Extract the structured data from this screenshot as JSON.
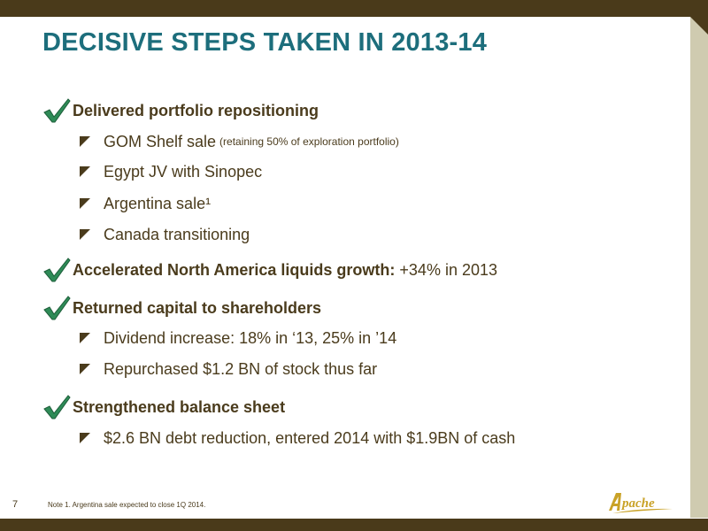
{
  "slide": {
    "title": "DECISIVE STEPS TAKEN IN 2013-14",
    "page_number": "7",
    "footnote": "Note 1. Argentina sale expected to close 1Q 2014.",
    "logo_text": "Apache"
  },
  "bullets": [
    {
      "text": "Delivered portfolio repositioning",
      "suffix": "",
      "items": [
        {
          "text": "GOM Shelf sale",
          "note": "(retaining 50% of exploration portfolio)"
        },
        {
          "text": "Egypt JV with Sinopec",
          "note": ""
        },
        {
          "text": "Argentina sale¹",
          "note": ""
        },
        {
          "text": "Canada transitioning",
          "note": ""
        }
      ]
    },
    {
      "text": "Accelerated North America liquids growth:",
      "suffix": " +34% in 2013",
      "items": []
    },
    {
      "text": "Returned capital to shareholders",
      "suffix": "",
      "items": [
        {
          "text": "Dividend increase: 18% in ‘13, 25% in ’14",
          "note": ""
        },
        {
          "text": "Repurchased $1.2 BN of stock thus far",
          "note": ""
        }
      ]
    },
    {
      "text": "Strengthened balance sheet",
      "suffix": "",
      "items": [
        {
          "text": "$2.6 BN debt reduction, entered 2014 with $1.9BN of cash",
          "note": ""
        }
      ]
    }
  ],
  "colors": {
    "title": "#1d6e7c",
    "text": "#4a3b1c",
    "bars": "#4a3a1a",
    "check": "#2e8b57",
    "logo": "#c9a227"
  }
}
